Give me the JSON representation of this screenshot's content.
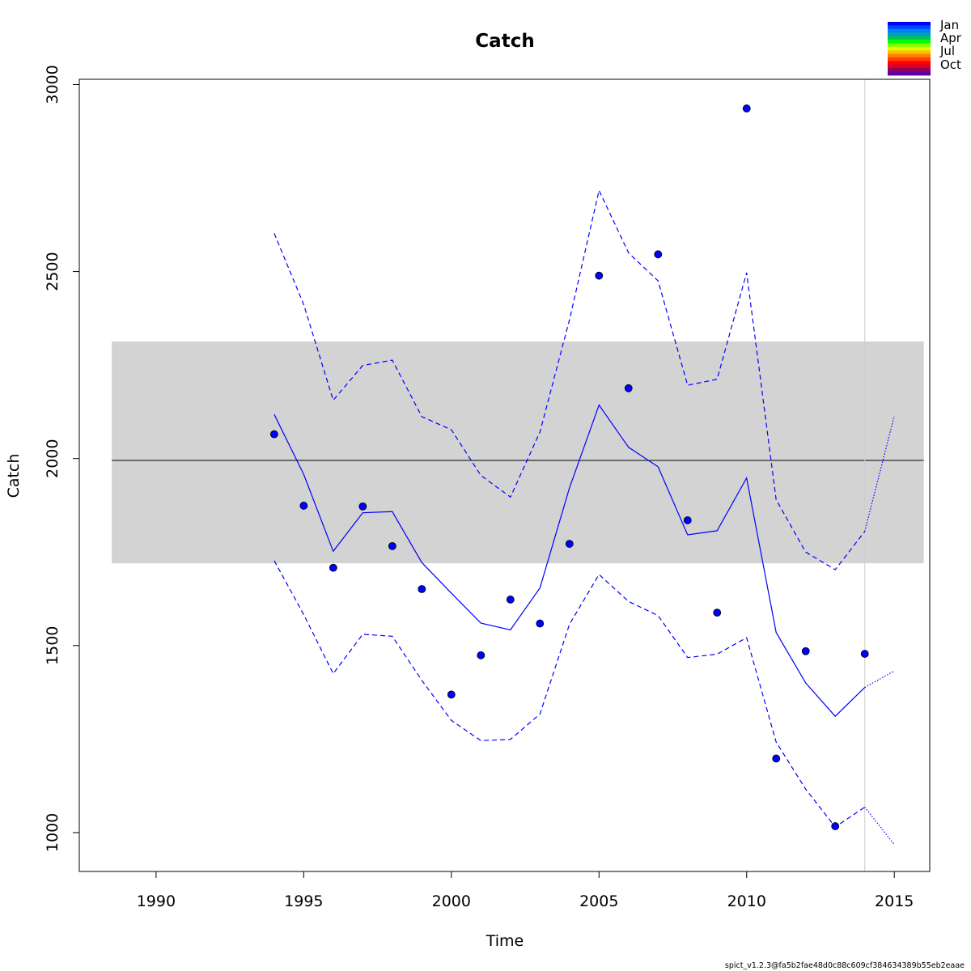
{
  "chart_data": {
    "type": "line",
    "title": "Catch",
    "xlabel": "Time",
    "ylabel": "Catch",
    "xlim": [
      1987.4,
      2016.2
    ],
    "ylim": [
      896,
      3014
    ],
    "x_ticks": [
      "1990",
      "1995",
      "2000",
      "2005",
      "2010",
      "2015"
    ],
    "y_ticks": [
      "1000",
      "1500",
      "2000",
      "2500",
      "3000"
    ],
    "msy_band": {
      "reference_line": 1995,
      "lower": 1720,
      "upper": 2313,
      "x_range": [
        1988.5,
        2016
      ]
    },
    "forecast_start": 2014,
    "series": [
      {
        "role": "observed",
        "style": "points",
        "color": "#0000ff",
        "x": [
          1994,
          1995,
          1996,
          1997,
          1998,
          1999,
          2000,
          2001,
          2002,
          2003,
          2004,
          2005,
          2006,
          2007,
          2008,
          2009,
          2010,
          2011,
          2012,
          2013,
          2014
        ],
        "values": [
          2065,
          1874,
          1708,
          1872,
          1766,
          1651,
          1369,
          1474,
          1623,
          1559,
          1772,
          2489,
          2188,
          2546,
          1835,
          1588,
          2936,
          1198,
          1485,
          1017,
          1478
        ]
      },
      {
        "role": "predicted",
        "style": "solid",
        "color": "#0000ff",
        "x": [
          1994,
          1995,
          1996,
          1997,
          1998,
          1999,
          2000,
          2001,
          2002,
          2003,
          2004,
          2005,
          2006,
          2007,
          2008,
          2009,
          2010,
          2011,
          2012,
          2013,
          2014
        ],
        "values": [
          2118,
          1958,
          1752,
          1855,
          1858,
          1722,
          1640,
          1560,
          1542,
          1654,
          1922,
          2143,
          2030,
          1978,
          1796,
          1807,
          1948,
          1535,
          1400,
          1311,
          1388
        ]
      },
      {
        "role": "upper_ci",
        "style": "dashed",
        "color": "#0000ff",
        "x": [
          1994,
          1995,
          1996,
          1997,
          1998,
          1999,
          2000,
          2001,
          2002,
          2003,
          2004,
          2005,
          2006,
          2007,
          2008,
          2009,
          2010,
          2011,
          2012,
          2013,
          2014
        ],
        "values": [
          2602,
          2412,
          2156,
          2249,
          2263,
          2112,
          2077,
          1955,
          1897,
          2071,
          2371,
          2717,
          2550,
          2475,
          2196,
          2212,
          2497,
          1890,
          1750,
          1703,
          1805
        ]
      },
      {
        "role": "lower_ci",
        "style": "dashed",
        "color": "#0000ff",
        "x": [
          1994,
          1995,
          1996,
          1997,
          1998,
          1999,
          2000,
          2001,
          2002,
          2003,
          2004,
          2005,
          2006,
          2007,
          2008,
          2009,
          2010,
          2011,
          2012,
          2013,
          2014
        ],
        "values": [
          1727,
          1583,
          1425,
          1530,
          1525,
          1407,
          1300,
          1246,
          1249,
          1317,
          1557,
          1690,
          1618,
          1580,
          1468,
          1477,
          1521,
          1242,
          1116,
          1015,
          1068
        ]
      },
      {
        "role": "forecast",
        "style": "dotted",
        "color": "#0000ff",
        "x": [
          2014,
          2015
        ],
        "values": [
          1388,
          1432
        ]
      },
      {
        "role": "forecast_upper",
        "style": "dotted",
        "color": "#0000ff",
        "x": [
          2014,
          2015
        ],
        "values": [
          1805,
          2114
        ]
      },
      {
        "role": "forecast_lower",
        "style": "dotted",
        "color": "#0000ff",
        "x": [
          2014,
          2015
        ],
        "values": [
          1068,
          968
        ]
      }
    ],
    "legend": {
      "placement": "top-right",
      "labels": [
        "Jan",
        "Apr",
        "Jul",
        "Oct"
      ],
      "colors": [
        "#0000ff",
        "#0044ff",
        "#0080ff",
        "#00a0b0",
        "#00c060",
        "#00ff00",
        "#80ff00",
        "#e0ff00",
        "#ffc000",
        "#ff8000",
        "#ff4000",
        "#ff0000",
        "#d00030",
        "#900060",
        "#6000a0"
      ]
    },
    "colors": {
      "points": "#0000ff",
      "lines": "#0000ff",
      "band": "#d3d3d3",
      "reference_line": "#000000",
      "forecast_divider": "#cccccc"
    }
  },
  "footer": {
    "version": "spict_v1.2.3@fa5b2fae48d0c88c609cf384634389b55eb2eaae"
  }
}
